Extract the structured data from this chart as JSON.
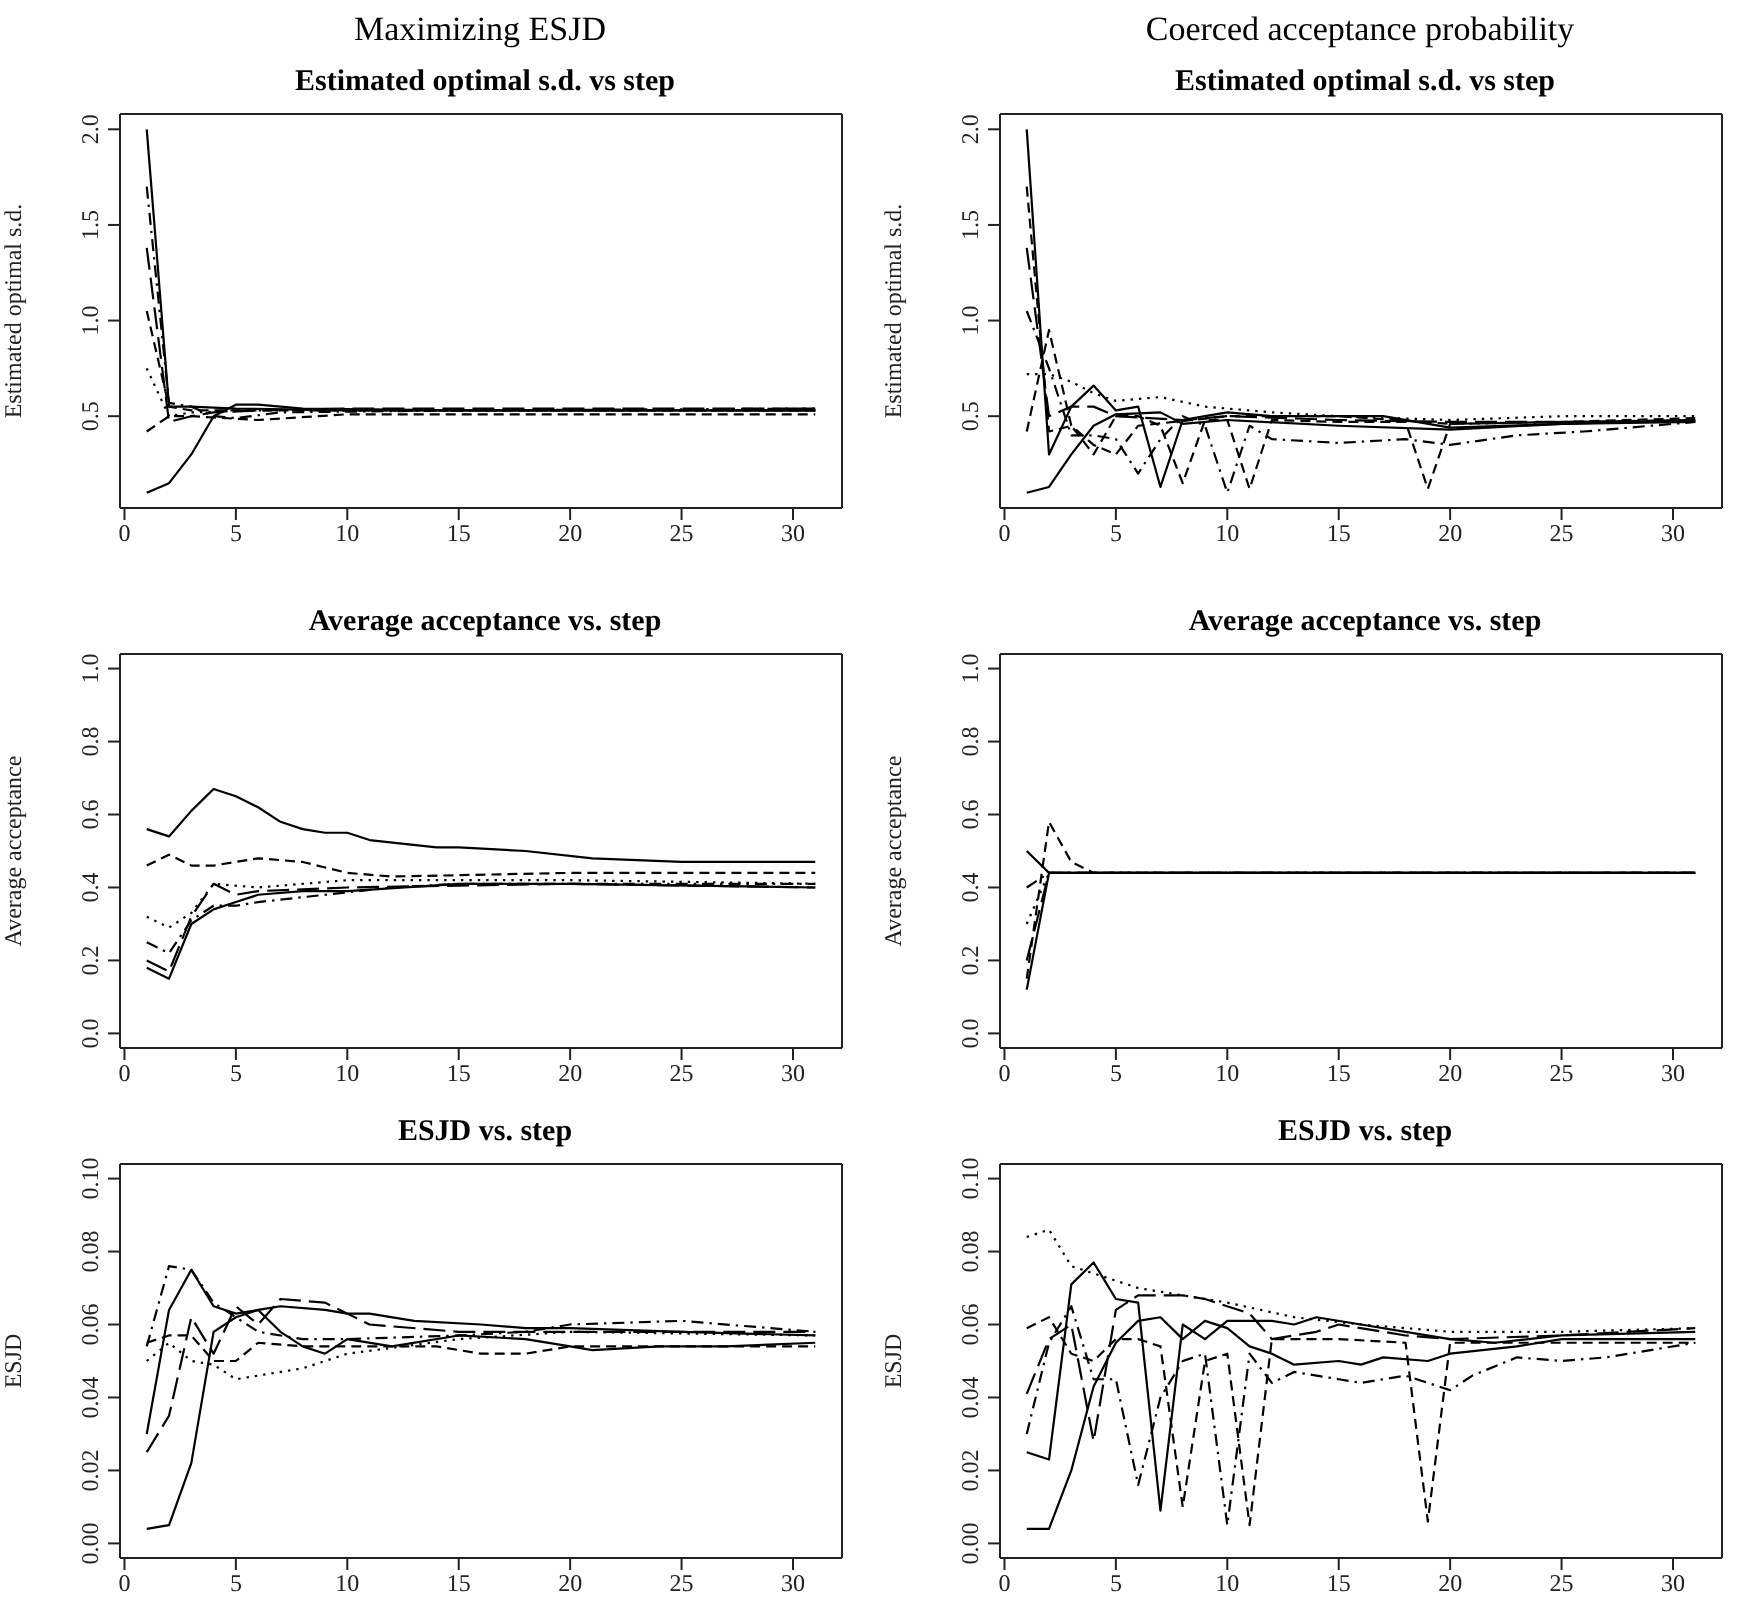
{
  "chart_data": [
    {
      "type": "line",
      "title": "Estimated optimal s.d. vs step",
      "ylabel": "Estimated optimal s.d.",
      "annotations": [
        "Maximizing ESJD"
      ],
      "xlim": [
        -0.2,
        32.2
      ],
      "xticks": [
        0,
        5,
        10,
        15,
        20,
        25,
        30
      ],
      "ylim": [
        0.02,
        2.08
      ],
      "yticks": [
        0.5,
        {
          "value": 1,
          "label": "1.0"
        },
        1.5,
        {
          "value": 2,
          "label": "2.0"
        }
      ],
      "series": [
        {
          "color": "#000000",
          "line_style": "solid",
          "x": [
            1,
            2,
            3,
            5,
            10,
            20,
            31
          ],
          "values": [
            2.0,
            0.55,
            0.55,
            0.54,
            0.53,
            0.53,
            0.53
          ]
        },
        {
          "color": "#000000",
          "line_style": "solid",
          "x": [
            1,
            2,
            3,
            4,
            5,
            6,
            8,
            15,
            31
          ],
          "values": [
            0.1,
            0.15,
            0.3,
            0.5,
            0.56,
            0.56,
            0.54,
            0.53,
            0.53
          ]
        },
        {
          "color": "#000000",
          "line_style": "longdash",
          "x": [
            1,
            2,
            3,
            4,
            6,
            10,
            31
          ],
          "values": [
            1.38,
            0.47,
            0.5,
            0.52,
            0.53,
            0.54,
            0.54
          ]
        },
        {
          "color": "#000000",
          "line_style": "dashdot",
          "x": [
            1,
            2,
            3,
            4,
            5,
            7,
            15,
            31
          ],
          "values": [
            1.7,
            0.57,
            0.55,
            0.5,
            0.49,
            0.52,
            0.53,
            0.54
          ]
        },
        {
          "color": "#000000",
          "line_style": "dotted",
          "x": [
            1,
            2,
            3,
            6,
            31
          ],
          "values": [
            0.75,
            0.5,
            0.52,
            0.53,
            0.53
          ]
        },
        {
          "color": "#000000",
          "line_style": "dashed",
          "x": [
            1,
            2,
            3,
            6,
            10,
            31
          ],
          "values": [
            0.42,
            0.5,
            0.5,
            0.48,
            0.51,
            0.51
          ]
        },
        {
          "color": "#000000",
          "line_style": "dashed",
          "x": [
            1,
            2,
            3,
            6,
            31
          ],
          "values": [
            1.05,
            0.55,
            0.53,
            0.53,
            0.53
          ]
        }
      ]
    },
    {
      "type": "line",
      "title": "Estimated optimal s.d. vs step",
      "ylabel": "Estimated optimal s.d.",
      "annotations": [
        "Coerced acceptance probability"
      ],
      "xlim": [
        -0.2,
        32.2
      ],
      "xticks": [
        0,
        5,
        10,
        15,
        20,
        25,
        30
      ],
      "ylim": [
        0.02,
        2.08
      ],
      "yticks": [
        0.5,
        {
          "value": 1,
          "label": "1.0"
        },
        1.5,
        {
          "value": 2,
          "label": "2.0"
        }
      ],
      "series": [
        {
          "color": "#000000",
          "line_style": "solid",
          "x": [
            1,
            2,
            3,
            4,
            5,
            6,
            7,
            8,
            9,
            10,
            12,
            17,
            20,
            25,
            31
          ],
          "values": [
            2.0,
            0.3,
            0.55,
            0.66,
            0.53,
            0.55,
            0.13,
            0.48,
            0.5,
            0.52,
            0.5,
            0.5,
            0.44,
            0.46,
            0.48
          ]
        },
        {
          "color": "#000000",
          "line_style": "solid",
          "x": [
            1,
            2,
            3,
            4,
            5,
            7,
            8,
            10,
            15,
            20,
            25,
            31
          ],
          "values": [
            0.1,
            0.13,
            0.3,
            0.45,
            0.51,
            0.52,
            0.46,
            0.48,
            0.45,
            0.43,
            0.46,
            0.47
          ]
        },
        {
          "color": "#000000",
          "line_style": "dashed",
          "x": [
            1,
            2,
            3,
            4,
            5,
            6,
            7,
            8,
            9,
            10,
            11,
            12,
            15,
            18,
            19,
            20,
            25,
            31
          ],
          "values": [
            1.7,
            0.42,
            0.45,
            0.3,
            0.5,
            0.5,
            0.45,
            0.15,
            0.48,
            0.48,
            0.12,
            0.48,
            0.47,
            0.47,
            0.12,
            0.46,
            0.47,
            0.49
          ]
        },
        {
          "color": "#000000",
          "line_style": "dashdot",
          "x": [
            1,
            2,
            3,
            4,
            5,
            6,
            7,
            8,
            9,
            10,
            11,
            12,
            15,
            18,
            20,
            23,
            26,
            31
          ],
          "values": [
            1.05,
            0.75,
            0.4,
            0.4,
            0.38,
            0.2,
            0.38,
            0.5,
            0.45,
            0.1,
            0.45,
            0.38,
            0.36,
            0.38,
            0.35,
            0.4,
            0.42,
            0.47
          ]
        },
        {
          "color": "#000000",
          "line_style": "dotted",
          "x": [
            1,
            2,
            3,
            4,
            5,
            7,
            9,
            12,
            15,
            20,
            25,
            31
          ],
          "values": [
            0.72,
            0.72,
            0.68,
            0.62,
            0.58,
            0.6,
            0.55,
            0.52,
            0.5,
            0.48,
            0.5,
            0.5
          ]
        },
        {
          "color": "#000000",
          "line_style": "longdash",
          "x": [
            1,
            2,
            3,
            4,
            5,
            8,
            10,
            15,
            20,
            31
          ],
          "values": [
            1.38,
            0.5,
            0.55,
            0.55,
            0.5,
            0.48,
            0.5,
            0.48,
            0.47,
            0.47
          ]
        },
        {
          "color": "#000000",
          "line_style": "dashed",
          "x": [
            1,
            2,
            3,
            4,
            5,
            6,
            10,
            15,
            20,
            31
          ],
          "values": [
            0.42,
            0.95,
            0.45,
            0.35,
            0.3,
            0.45,
            0.5,
            0.5,
            0.46,
            0.48
          ]
        }
      ]
    },
    {
      "type": "line",
      "title": "Average acceptance vs. step",
      "ylabel": "Average acceptance",
      "xlim": [
        -0.2,
        32.2
      ],
      "xticks": [
        0,
        5,
        10,
        15,
        20,
        25,
        30
      ],
      "ylim": [
        -0.04,
        1.04
      ],
      "yticks": [
        {
          "value": 0,
          "label": "0.0"
        },
        0.2,
        0.4,
        0.6,
        0.8,
        {
          "value": 1,
          "label": "1.0"
        }
      ],
      "series": [
        {
          "color": "#000000",
          "line_style": "solid",
          "x": [
            1,
            2,
            3,
            4,
            5,
            6,
            7,
            8,
            9,
            10,
            11,
            14,
            15,
            18,
            21,
            25,
            31
          ],
          "values": [
            0.56,
            0.54,
            0.61,
            0.67,
            0.65,
            0.62,
            0.58,
            0.56,
            0.55,
            0.55,
            0.53,
            0.51,
            0.51,
            0.5,
            0.48,
            0.47,
            0.47
          ]
        },
        {
          "color": "#000000",
          "line_style": "dashed",
          "x": [
            1,
            2,
            3,
            4,
            6,
            8,
            10,
            12,
            20,
            31
          ],
          "values": [
            0.46,
            0.49,
            0.46,
            0.46,
            0.48,
            0.47,
            0.44,
            0.43,
            0.44,
            0.44
          ]
        },
        {
          "color": "#000000",
          "line_style": "solid",
          "x": [
            1,
            2,
            3,
            4,
            5,
            6,
            8,
            10,
            15,
            20,
            31
          ],
          "values": [
            0.18,
            0.15,
            0.3,
            0.34,
            0.36,
            0.38,
            0.39,
            0.39,
            0.41,
            0.41,
            0.4
          ]
        },
        {
          "color": "#000000",
          "line_style": "dotted",
          "x": [
            1,
            2,
            3,
            4,
            6,
            10,
            20,
            31
          ],
          "values": [
            0.32,
            0.29,
            0.33,
            0.41,
            0.4,
            0.42,
            0.42,
            0.41
          ]
        },
        {
          "color": "#000000",
          "line_style": "dashdot",
          "x": [
            1,
            2,
            3,
            4,
            5,
            6,
            9,
            12,
            15,
            31
          ],
          "values": [
            0.25,
            0.22,
            0.31,
            0.35,
            0.35,
            0.36,
            0.38,
            0.4,
            0.41,
            0.41
          ]
        },
        {
          "color": "#000000",
          "line_style": "longdash",
          "x": [
            1,
            2,
            3,
            4,
            5,
            6,
            10,
            20,
            31
          ],
          "values": [
            0.2,
            0.17,
            0.32,
            0.41,
            0.38,
            0.39,
            0.4,
            0.41,
            0.4
          ]
        }
      ]
    },
    {
      "type": "line",
      "title": "Average acceptance vs. step",
      "ylabel": "Average acceptance",
      "xlim": [
        -0.2,
        32.2
      ],
      "xticks": [
        0,
        5,
        10,
        15,
        20,
        25,
        30
      ],
      "ylim": [
        -0.04,
        1.04
      ],
      "yticks": [
        {
          "value": 0,
          "label": "0.0"
        },
        0.2,
        0.4,
        0.6,
        0.8,
        {
          "value": 1,
          "label": "1.0"
        }
      ],
      "series": [
        {
          "color": "#000000",
          "line_style": "solid",
          "x": [
            1,
            2,
            31
          ],
          "values": [
            0.5,
            0.44,
            0.44
          ]
        },
        {
          "color": "#000000",
          "line_style": "solid",
          "x": [
            1,
            2,
            31
          ],
          "values": [
            0.12,
            0.44,
            0.44
          ]
        },
        {
          "color": "#000000",
          "line_style": "dashed",
          "x": [
            1,
            2,
            3,
            4,
            31
          ],
          "values": [
            0.15,
            0.58,
            0.47,
            0.44,
            0.44
          ]
        },
        {
          "color": "#000000",
          "line_style": "dashdot",
          "x": [
            1,
            2,
            31
          ],
          "values": [
            0.4,
            0.44,
            0.44
          ]
        },
        {
          "color": "#000000",
          "line_style": "dotted",
          "x": [
            1,
            2,
            31
          ],
          "values": [
            0.3,
            0.44,
            0.44
          ]
        },
        {
          "color": "#000000",
          "line_style": "longdash",
          "x": [
            1,
            2,
            31
          ],
          "values": [
            0.2,
            0.44,
            0.44
          ]
        }
      ]
    },
    {
      "type": "line",
      "title": "ESJD vs. step",
      "ylabel": "ESJD",
      "xlim": [
        -0.2,
        32.2
      ],
      "xticks": [
        0,
        5,
        10,
        15,
        20,
        25,
        30
      ],
      "ylim": [
        -0.004,
        0.104
      ],
      "yticks": [
        {
          "value": 0,
          "label": "0.00"
        },
        0.02,
        0.04,
        0.06,
        0.08,
        {
          "value": 0.1,
          "label": "0.10"
        }
      ],
      "series": [
        {
          "color": "#000000",
          "line_style": "solid",
          "x": [
            1,
            2,
            3,
            4,
            5,
            6,
            7,
            9,
            10,
            11,
            13,
            16,
            18,
            20,
            25,
            31
          ],
          "values": [
            0.004,
            0.005,
            0.022,
            0.058,
            0.062,
            0.064,
            0.065,
            0.064,
            0.063,
            0.063,
            0.061,
            0.06,
            0.059,
            0.059,
            0.058,
            0.057
          ]
        },
        {
          "color": "#000000",
          "line_style": "solid",
          "x": [
            1,
            2,
            3,
            4,
            5,
            6,
            7,
            8,
            9,
            10,
            12,
            15,
            18,
            20,
            21,
            24,
            27,
            31
          ],
          "values": [
            0.03,
            0.064,
            0.075,
            0.065,
            0.063,
            0.064,
            0.058,
            0.054,
            0.052,
            0.056,
            0.054,
            0.057,
            0.056,
            0.054,
            0.053,
            0.054,
            0.054,
            0.055
          ]
        },
        {
          "color": "#000000",
          "line_style": "dashdot",
          "x": [
            1,
            2,
            3,
            4,
            5,
            6,
            8,
            10,
            15,
            18,
            20,
            25,
            31
          ],
          "values": [
            0.054,
            0.076,
            0.075,
            0.066,
            0.062,
            0.058,
            0.056,
            0.056,
            0.057,
            0.058,
            0.06,
            0.061,
            0.058
          ]
        },
        {
          "color": "#000000",
          "line_style": "dotted",
          "x": [
            1,
            2,
            3,
            4,
            5,
            6,
            8,
            10,
            15,
            20,
            31
          ],
          "values": [
            0.05,
            0.055,
            0.05,
            0.049,
            0.045,
            0.046,
            0.048,
            0.052,
            0.056,
            0.058,
            0.057
          ]
        },
        {
          "color": "#000000",
          "line_style": "dashed",
          "x": [
            1,
            2,
            3,
            4,
            5,
            6,
            8,
            12,
            14,
            16,
            18,
            20,
            26,
            31
          ],
          "values": [
            0.055,
            0.057,
            0.057,
            0.05,
            0.05,
            0.055,
            0.054,
            0.054,
            0.054,
            0.052,
            0.052,
            0.054,
            0.054,
            0.054
          ]
        },
        {
          "color": "#000000",
          "line_style": "longdash",
          "x": [
            1,
            2,
            3,
            4,
            5,
            6,
            7,
            9,
            11,
            15,
            20,
            31
          ],
          "values": [
            0.025,
            0.035,
            0.062,
            0.052,
            0.065,
            0.06,
            0.067,
            0.066,
            0.06,
            0.058,
            0.058,
            0.058
          ]
        }
      ]
    },
    {
      "type": "line",
      "title": "ESJD vs. step",
      "ylabel": "ESJD",
      "xlim": [
        -0.2,
        32.2
      ],
      "xticks": [
        0,
        5,
        10,
        15,
        20,
        25,
        30
      ],
      "ylim": [
        -0.004,
        0.104
      ],
      "yticks": [
        {
          "value": 0,
          "label": "0.00"
        },
        0.02,
        0.04,
        0.06,
        0.08,
        {
          "value": 0.1,
          "label": "0.10"
        }
      ],
      "series": [
        {
          "color": "#000000",
          "line_style": "dotted",
          "x": [
            1,
            2,
            3,
            4,
            5,
            6,
            8,
            10,
            13,
            16,
            20,
            25,
            31
          ],
          "values": [
            0.084,
            0.086,
            0.076,
            0.074,
            0.072,
            0.07,
            0.068,
            0.066,
            0.062,
            0.06,
            0.058,
            0.058,
            0.059
          ]
        },
        {
          "color": "#000000",
          "line_style": "solid",
          "x": [
            1,
            2,
            3,
            4,
            5,
            6,
            7,
            8,
            9,
            10,
            12,
            13,
            14,
            16,
            18,
            20,
            22,
            25,
            31
          ],
          "values": [
            0.025,
            0.023,
            0.071,
            0.077,
            0.067,
            0.066,
            0.009,
            0.06,
            0.056,
            0.061,
            0.061,
            0.06,
            0.062,
            0.06,
            0.058,
            0.056,
            0.055,
            0.057,
            0.058
          ]
        },
        {
          "color": "#000000",
          "line_style": "solid",
          "x": [
            1,
            2,
            3,
            4,
            5,
            6,
            7,
            8,
            9,
            10,
            11,
            12,
            13,
            15,
            16,
            17,
            19,
            20,
            23,
            25,
            31
          ],
          "values": [
            0.004,
            0.004,
            0.02,
            0.043,
            0.055,
            0.061,
            0.062,
            0.056,
            0.061,
            0.059,
            0.054,
            0.052,
            0.049,
            0.05,
            0.049,
            0.051,
            0.05,
            0.052,
            0.054,
            0.056,
            0.056
          ]
        },
        {
          "color": "#000000",
          "line_style": "dashed",
          "x": [
            1,
            2,
            3,
            4,
            5,
            6,
            7,
            8,
            9,
            10,
            11,
            12,
            15,
            18,
            19,
            20,
            25,
            31
          ],
          "values": [
            0.059,
            0.062,
            0.052,
            0.05,
            0.056,
            0.056,
            0.054,
            0.01,
            0.05,
            0.052,
            0.005,
            0.056,
            0.056,
            0.055,
            0.006,
            0.055,
            0.055,
            0.055
          ]
        },
        {
          "color": "#000000",
          "line_style": "dashdot",
          "x": [
            1,
            2,
            3,
            4,
            5,
            6,
            7,
            8,
            9,
            10,
            11,
            12,
            13,
            15,
            16,
            18,
            20,
            21,
            23,
            25,
            27,
            31
          ],
          "values": [
            0.03,
            0.055,
            0.065,
            0.045,
            0.045,
            0.016,
            0.04,
            0.05,
            0.052,
            0.005,
            0.052,
            0.044,
            0.047,
            0.045,
            0.044,
            0.046,
            0.042,
            0.046,
            0.051,
            0.05,
            0.051,
            0.055
          ]
        },
        {
          "color": "#000000",
          "line_style": "longdash",
          "x": [
            1,
            2,
            3,
            4,
            5,
            6,
            8,
            9,
            11,
            12,
            14,
            15,
            18,
            20,
            25,
            31
          ],
          "values": [
            0.041,
            0.056,
            0.06,
            0.028,
            0.064,
            0.068,
            0.068,
            0.067,
            0.063,
            0.056,
            0.058,
            0.06,
            0.057,
            0.056,
            0.057,
            0.059
          ]
        }
      ]
    }
  ]
}
